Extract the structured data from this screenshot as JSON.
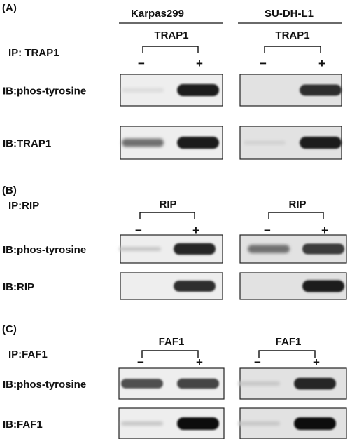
{
  "figure": {
    "cell_lines": [
      "Karpas299",
      "SU-DH-L1"
    ],
    "panels": [
      {
        "id": "A",
        "panel_label": "(A)",
        "ip_label": "IP: TRAP1",
        "antigen": "TRAP1",
        "minus": "−",
        "plus": "+",
        "blots": [
          {
            "label": "IB:phos-tyrosine",
            "karpas": {
              "minus": 0.05,
              "plus": 0.95
            },
            "sudhl1": {
              "minus": 0.0,
              "plus": 0.85
            }
          },
          {
            "label": "IB:TRAP1",
            "karpas": {
              "minus": 0.55,
              "plus": 0.95
            },
            "sudhl1": {
              "minus": 0.1,
              "plus": 0.95
            }
          }
        ]
      },
      {
        "id": "B",
        "panel_label": "(B)",
        "ip_label": "IP:RIP",
        "antigen": "RIP",
        "minus": "−",
        "plus": "+",
        "blots": [
          {
            "label": "IB:phos-tyrosine",
            "karpas": {
              "minus": 0.15,
              "plus": 0.9
            },
            "sudhl1": {
              "minus": 0.55,
              "plus": 0.8
            }
          },
          {
            "label": "IB:RIP",
            "karpas": {
              "minus": 0.0,
              "plus": 0.85
            },
            "sudhl1": {
              "minus": 0.0,
              "plus": 0.95
            }
          }
        ]
      },
      {
        "id": "C",
        "panel_label": "(C)",
        "ip_label": "IP:FAF1",
        "antigen": "FAF1",
        "minus": "−",
        "plus": "+",
        "blots": [
          {
            "label": "IB:phos-tyrosine",
            "karpas": {
              "minus": 0.7,
              "plus": 0.75
            },
            "sudhl1": {
              "minus": 0.15,
              "plus": 0.9
            }
          },
          {
            "label": "IB:FAF1",
            "karpas": {
              "minus": 0.15,
              "plus": 1.0
            },
            "sudhl1": {
              "minus": 0.15,
              "plus": 1.0
            }
          }
        ]
      }
    ]
  }
}
